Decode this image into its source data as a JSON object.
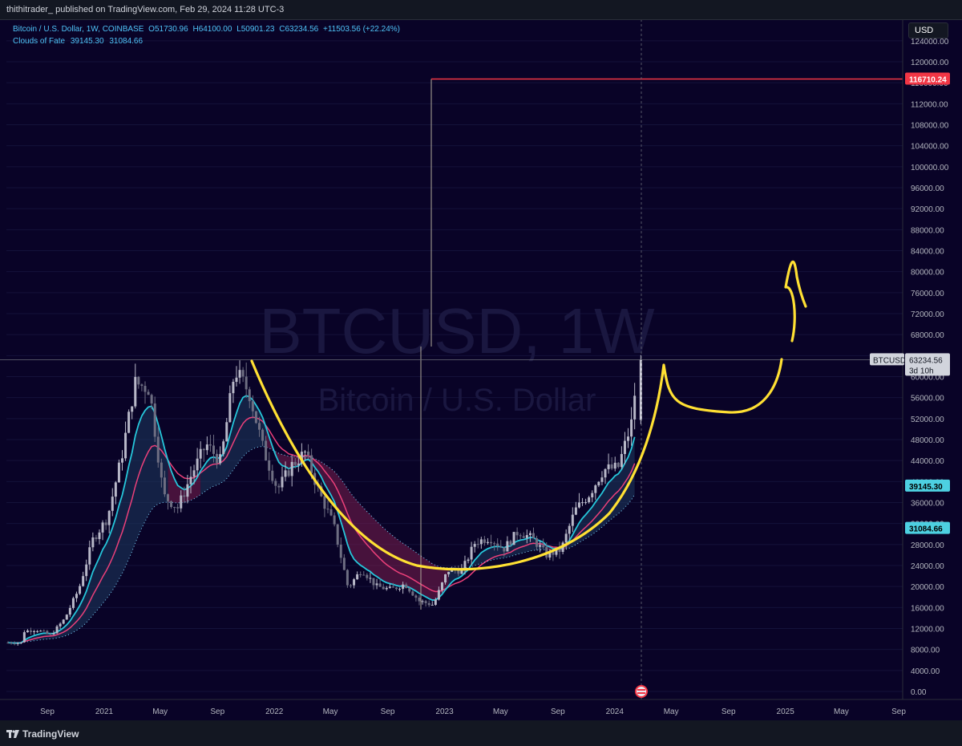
{
  "header": {
    "published_text": "thithitrader_ published on TradingView.com, Feb 29, 2024 11:28 UTC-3"
  },
  "legend": {
    "symbol_desc": "Bitcoin / U.S. Dollar, 1W, COINBASE",
    "open_label": "O",
    "open": "51730.96",
    "high_label": "H",
    "high": "64100.00",
    "low_label": "L",
    "low": "50901.23",
    "close_label": "C",
    "close": "63234.56",
    "change": "+11503.56 (+22.24%)",
    "indicator_name": "Clouds of Fate",
    "indicator_v1": "39145.30",
    "indicator_v2": "31084.66"
  },
  "currency_button": "USD",
  "watermark": {
    "line1": "BTCUSD, 1W",
    "line2": "Bitcoin / U.S. Dollar"
  },
  "footer": {
    "brand": "TradingView"
  },
  "colors": {
    "background": "#090327",
    "up": "#26c6da",
    "down": "#ef5350",
    "cloud_blue": "#1e3a5f",
    "cloud_red": "#7a1f4f",
    "drawing": "#ffe033",
    "target_line": "#f23645",
    "price_label": "#4dd0e1"
  },
  "chart_data": {
    "type": "candlestick",
    "symbol": "BTCUSD",
    "timeframe": "1W",
    "ylim": [
      0,
      124000
    ],
    "y_ticks": [
      "0.00",
      "4000.00",
      "8000.00",
      "12000.00",
      "16000.00",
      "20000.00",
      "24000.00",
      "28000.00",
      "32000.00",
      "36000.00",
      "40000.00",
      "44000.00",
      "48000.00",
      "52000.00",
      "56000.00",
      "60000.00",
      "64000.00",
      "68000.00",
      "72000.00",
      "76000.00",
      "80000.00",
      "84000.00",
      "88000.00",
      "92000.00",
      "96000.00",
      "100000.00",
      "104000.00",
      "108000.00",
      "112000.00",
      "116000.00",
      "120000.00",
      "124000.00"
    ],
    "x_ticks": [
      {
        "label": "Sep",
        "date": "2020-09-01"
      },
      {
        "label": "2021",
        "date": "2021-01-01"
      },
      {
        "label": "May",
        "date": "2021-05-01"
      },
      {
        "label": "Sep",
        "date": "2021-09-01"
      },
      {
        "label": "2022",
        "date": "2022-01-01"
      },
      {
        "label": "May",
        "date": "2022-05-01"
      },
      {
        "label": "Sep",
        "date": "2022-09-01"
      },
      {
        "label": "2023",
        "date": "2023-01-01"
      },
      {
        "label": "May",
        "date": "2023-05-01"
      },
      {
        "label": "Sep",
        "date": "2023-09-01"
      },
      {
        "label": "2024",
        "date": "2024-01-01"
      },
      {
        "label": "May",
        "date": "2024-05-01"
      },
      {
        "label": "Sep",
        "date": "2024-09-01"
      },
      {
        "label": "2025",
        "date": "2025-01-01"
      },
      {
        "label": "May",
        "date": "2025-05-01"
      },
      {
        "label": "Sep",
        "date": "2025-09-01"
      }
    ],
    "candles_approx": [
      [
        "2020-07",
        9300,
        11400
      ],
      [
        "2020-08",
        11300,
        11800
      ],
      [
        "2020-09",
        10800,
        10700
      ],
      [
        "2020-10",
        11000,
        13800
      ],
      [
        "2020-11",
        13800,
        19600
      ],
      [
        "2020-12",
        19600,
        29000
      ],
      [
        "2021-01",
        29000,
        33100
      ],
      [
        "2021-02",
        33100,
        45000
      ],
      [
        "2021-03",
        45000,
        58800
      ],
      [
        "2021-04",
        58800,
        57700
      ],
      [
        "2021-05",
        57700,
        37300
      ],
      [
        "2021-06",
        37300,
        35000
      ],
      [
        "2021-07",
        35000,
        41500
      ],
      [
        "2021-08",
        41500,
        47100
      ],
      [
        "2021-09",
        47100,
        43800
      ],
      [
        "2021-10",
        43800,
        61300
      ],
      [
        "2021-11",
        61300,
        57000
      ],
      [
        "2021-12",
        57000,
        46200
      ],
      [
        "2022-01",
        46200,
        38500
      ],
      [
        "2022-02",
        38500,
        43200
      ],
      [
        "2022-03",
        43200,
        45500
      ],
      [
        "2022-04",
        45500,
        37700
      ],
      [
        "2022-05",
        37700,
        31800
      ],
      [
        "2022-06",
        31800,
        19800
      ],
      [
        "2022-07",
        19800,
        23300
      ],
      [
        "2022-08",
        23300,
        20000
      ],
      [
        "2022-09",
        20000,
        19400
      ],
      [
        "2022-10",
        19400,
        20500
      ],
      [
        "2022-11",
        20500,
        17200
      ],
      [
        "2022-12",
        17200,
        16500
      ],
      [
        "2023-01",
        16500,
        23100
      ],
      [
        "2023-02",
        23100,
        23100
      ],
      [
        "2023-03",
        23100,
        28500
      ],
      [
        "2023-04",
        28500,
        29300
      ],
      [
        "2023-05",
        29300,
        27200
      ],
      [
        "2023-06",
        27200,
        30500
      ],
      [
        "2023-07",
        30500,
        29200
      ],
      [
        "2023-08",
        29200,
        26000
      ],
      [
        "2023-09",
        26000,
        27000
      ],
      [
        "2023-10",
        27000,
        34500
      ],
      [
        "2023-11",
        34500,
        37700
      ],
      [
        "2023-12",
        37700,
        42300
      ],
      [
        "2024-01",
        42300,
        42600
      ],
      [
        "2024-02",
        42600,
        51730
      ],
      [
        "2024-02-26",
        51730.96,
        63234.56
      ]
    ],
    "last_price": 63234.56,
    "last_price_label": "BTCUSD",
    "countdown": "3d 10h",
    "target_line_value": 116710.24,
    "indicator_values": [
      39145.3,
      31084.66
    ],
    "annotations": [
      "cup-and-handle drawing",
      "arrow up"
    ]
  }
}
